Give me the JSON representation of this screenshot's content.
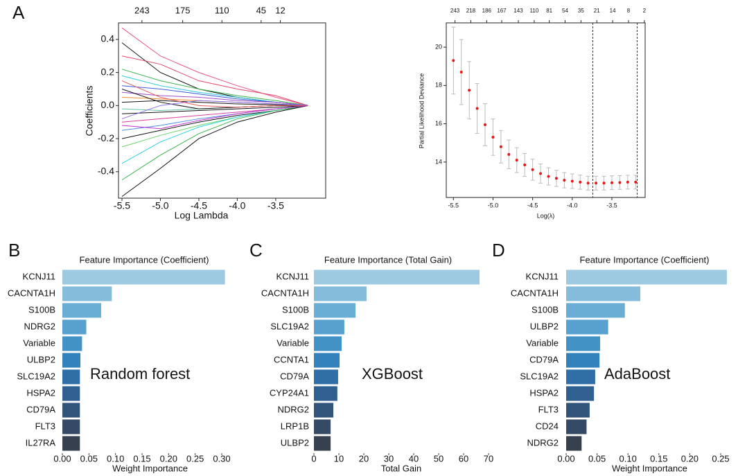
{
  "chart_data": [
    {
      "type": "lasso",
      "panel": "A",
      "xlabel": "Log Lambda",
      "ylabel": "Coefficients",
      "x": [
        -5.5,
        -5.0,
        -4.5,
        -4.0,
        -3.5,
        -3.08
      ],
      "xlim": [
        -5.545,
        -2.85
      ],
      "ylim": [
        -0.56,
        0.5
      ],
      "xticks": [
        -5.5,
        {
          "value": -5,
          "label": "-5.0"
        },
        -4.5,
        {
          "value": -4,
          "label": "-4.0"
        },
        -3.5
      ],
      "yticks": [
        -0.4,
        -0.2,
        {
          "value": 0,
          "label": "0.0"
        },
        0.2,
        0.4
      ],
      "x2ticks": [
        {
          "value": -5.24,
          "label": "243"
        },
        {
          "value": -4.71,
          "label": "175"
        },
        {
          "value": -4.2,
          "label": "110"
        },
        {
          "value": -3.69,
          "label": "45"
        },
        {
          "value": -3.44,
          "label": "12"
        }
      ],
      "series": [
        {
          "color": "#e7508a",
          "values": [
            0.47,
            0.3,
            0.2,
            0.12,
            0.05,
            0
          ]
        },
        {
          "color": "#111111",
          "values": [
            0.38,
            0.2,
            0.1,
            0.05,
            0.02,
            0
          ]
        },
        {
          "color": "#e2466a",
          "values": [
            0.3,
            0.25,
            0.15,
            0.1,
            0.06,
            0
          ]
        },
        {
          "color": "#3cb44b",
          "values": [
            0.22,
            0.15,
            0.1,
            0.06,
            0.03,
            0
          ]
        },
        {
          "color": "#27c6d8",
          "values": [
            0.18,
            0.12,
            0.08,
            0.05,
            0.02,
            0
          ]
        },
        {
          "color": "#3a5bd9",
          "values": [
            0.12,
            0.1,
            0.07,
            0.04,
            0.02,
            0
          ]
        },
        {
          "color": "#9b4dca",
          "values": [
            0.08,
            0.06,
            0.05,
            0.03,
            0.02,
            0
          ]
        },
        {
          "color": "#f08c2a",
          "values": [
            0.05,
            0.04,
            0.03,
            0.02,
            0.01,
            0
          ]
        },
        {
          "color": "#111111",
          "values": [
            0.02,
            0.03,
            0.02,
            0.01,
            0.005,
            0
          ]
        },
        {
          "color": "#66c2a5",
          "values": [
            -0.02,
            -0.03,
            -0.02,
            -0.01,
            0,
            0
          ]
        },
        {
          "color": "#111111",
          "values": [
            -0.05,
            -0.04,
            -0.03,
            -0.02,
            -0.01,
            0
          ]
        },
        {
          "color": "#d53e9e",
          "values": [
            -0.1,
            -0.08,
            -0.06,
            -0.04,
            -0.02,
            0
          ]
        },
        {
          "color": "#4f8de0",
          "values": [
            -0.15,
            -0.12,
            -0.08,
            -0.05,
            -0.02,
            0
          ]
        },
        {
          "color": "#111111",
          "values": [
            -0.2,
            -0.15,
            -0.1,
            -0.06,
            -0.03,
            0
          ]
        },
        {
          "color": "#6bd36b",
          "values": [
            -0.25,
            -0.18,
            -0.12,
            -0.07,
            -0.03,
            0
          ]
        },
        {
          "color": "#2ed3e6",
          "values": [
            -0.35,
            -0.22,
            -0.13,
            -0.07,
            -0.03,
            0
          ]
        },
        {
          "color": "#3cb44b",
          "values": [
            -0.45,
            -0.3,
            -0.17,
            -0.08,
            -0.03,
            0
          ]
        },
        {
          "color": "#111111",
          "values": [
            -0.55,
            -0.38,
            -0.2,
            -0.1,
            -0.04,
            0
          ]
        },
        {
          "color": "#111111",
          "values": [
            0.1,
            0.02,
            -0.02,
            -0.01,
            0,
            0
          ]
        },
        {
          "color": "#8a6ee8",
          "values": [
            -0.08,
            0.0,
            0.03,
            0.02,
            0.01,
            0
          ]
        },
        {
          "color": "#e85a5a",
          "values": [
            0.15,
            0.05,
            0.0,
            -0.01,
            0,
            0
          ]
        },
        {
          "color": "#c02fd0",
          "values": [
            -0.12,
            -0.14,
            -0.09,
            -0.05,
            -0.02,
            0
          ]
        }
      ]
    },
    {
      "type": "errorbar",
      "xlabel": "Log(λ)",
      "ylabel": "Partial Likelihood Deviance",
      "x": [
        -5.5,
        -5.4,
        -5.3,
        -5.2,
        -5.1,
        -5.0,
        -4.9,
        -4.8,
        -4.7,
        -4.6,
        -4.5,
        -4.4,
        -4.3,
        -4.2,
        -4.1,
        -4.0,
        -3.9,
        -3.8,
        -3.7,
        -3.6,
        -3.5,
        -3.4,
        -3.3,
        -3.2
      ],
      "values": [
        19.3,
        18.7,
        17.75,
        16.8,
        15.95,
        15.3,
        14.8,
        14.4,
        14.1,
        13.85,
        13.6,
        13.4,
        13.25,
        13.15,
        13.05,
        13.0,
        12.95,
        12.9,
        12.9,
        12.9,
        12.92,
        12.93,
        12.95,
        12.95
      ],
      "errors": [
        1.75,
        1.7,
        1.5,
        1.3,
        1.1,
        0.95,
        0.85,
        0.75,
        0.65,
        0.6,
        0.55,
        0.5,
        0.45,
        0.42,
        0.4,
        0.38,
        0.37,
        0.36,
        0.36,
        0.36,
        0.36,
        0.36,
        0.36,
        0.36
      ],
      "point_color": "#e8161b",
      "error_color": "#bbbbbb",
      "vlines": [
        -3.74,
        -3.18
      ],
      "xlim": [
        -5.59,
        -3.08
      ],
      "ylim": [
        12.15,
        21.27
      ],
      "xticks": [
        -5.5,
        {
          "value": -5,
          "label": "-5.0"
        },
        -4.5,
        {
          "value": -4,
          "label": "-4.0"
        },
        -3.5
      ],
      "yticks": [
        14,
        16,
        18,
        20
      ],
      "x2ticks": [
        {
          "value": -5.48,
          "label": "243"
        },
        {
          "value": -5.28,
          "label": "218"
        },
        {
          "value": -5.08,
          "label": "186"
        },
        {
          "value": -4.89,
          "label": "167"
        },
        {
          "value": -4.68,
          "label": "143"
        },
        {
          "value": -4.48,
          "label": "110"
        },
        {
          "value": -4.29,
          "label": "81"
        },
        {
          "value": -4.09,
          "label": "54"
        },
        {
          "value": -3.89,
          "label": "35"
        },
        {
          "value": -3.69,
          "label": "21"
        },
        {
          "value": -3.49,
          "label": "14"
        },
        {
          "value": -3.29,
          "label": "8"
        },
        {
          "value": -3.09,
          "label": "2"
        }
      ]
    },
    {
      "type": "barh",
      "panel": "B",
      "title": "Feature Importance (Coefficient)",
      "xlabel": "Weight Importance",
      "annotation": "Random forest",
      "categories": [
        "KCNJ11",
        "CACNTA1H",
        "S100B",
        "NDRG2",
        "Variable",
        "ULBP2",
        "SLC19A2",
        "HSPA2",
        "CD79A",
        "FLT3",
        "IL27RA"
      ],
      "values": [
        0.306,
        0.093,
        0.073,
        0.045,
        0.037,
        0.034,
        0.033,
        0.033,
        0.033,
        0.033,
        0.033
      ],
      "colors": [
        "#9ecae1",
        "#85bbdb",
        "#6aaed6",
        "#58a1cf",
        "#4292c6",
        "#3482bc",
        "#2f6fa6",
        "#2f6090",
        "#33547a",
        "#354a64",
        "#36404e"
      ],
      "xlim": [
        0,
        0.33
      ],
      "xticks": [
        {
          "value": 0,
          "label": "0.00"
        },
        0.05,
        {
          "value": 0.1,
          "label": "0.10"
        },
        0.15,
        {
          "value": 0.2,
          "label": "0.20"
        },
        0.25,
        {
          "value": 0.3,
          "label": "0.30"
        }
      ]
    },
    {
      "type": "barh",
      "panel": "C",
      "title": "Feature Importance (Total Gain)",
      "xlabel": "Total Gain",
      "annotation": "XGBoost",
      "categories": [
        "KCNJ11",
        "CACNTA1H",
        "S100B",
        "SLC19A2",
        "Variable",
        "CCNTA1",
        "CD79A",
        "CYP24A1",
        "NDRG2",
        "LRP1B",
        "ULBP2"
      ],
      "values": [
        66.4,
        21.1,
        16.7,
        12.2,
        11.1,
        10.3,
        9.7,
        9.4,
        7.8,
        6.7,
        6.7
      ],
      "colors": [
        "#9ecae1",
        "#85bbdb",
        "#6aaed6",
        "#58a1cf",
        "#4292c6",
        "#3482bc",
        "#2f6fa6",
        "#2f6090",
        "#33547a",
        "#354a64",
        "#36404e"
      ],
      "xlim": [
        0,
        70
      ],
      "xticks": [
        0,
        10,
        20,
        30,
        40,
        50,
        60,
        70
      ]
    },
    {
      "type": "barh",
      "panel": "D",
      "title": "Feature Importance (Coefficient)",
      "xlabel": "Weight Importance",
      "annotation": "AdaBoost",
      "categories": [
        "KCNJ11",
        "CACNTA1H",
        "S100B",
        "ULBP2",
        "Variable",
        "CD79A",
        "SLC19A2",
        "HSPA2",
        "FLT3",
        "CD24",
        "NDRG2"
      ],
      "values": [
        0.26,
        0.12,
        0.095,
        0.068,
        0.055,
        0.054,
        0.047,
        0.045,
        0.038,
        0.033,
        0.025
      ],
      "colors": [
        "#9ecae1",
        "#85bbdb",
        "#6aaed6",
        "#58a1cf",
        "#4292c6",
        "#3482bc",
        "#2f6fa6",
        "#2f6090",
        "#33547a",
        "#354a64",
        "#36404e"
      ],
      "xlim": [
        0,
        0.27
      ],
      "xticks": [
        {
          "value": 0,
          "label": "0.00"
        },
        0.05,
        {
          "value": 0.1,
          "label": "0.10"
        },
        0.15,
        {
          "value": 0.2,
          "label": "0.20"
        },
        0.25
      ]
    }
  ]
}
